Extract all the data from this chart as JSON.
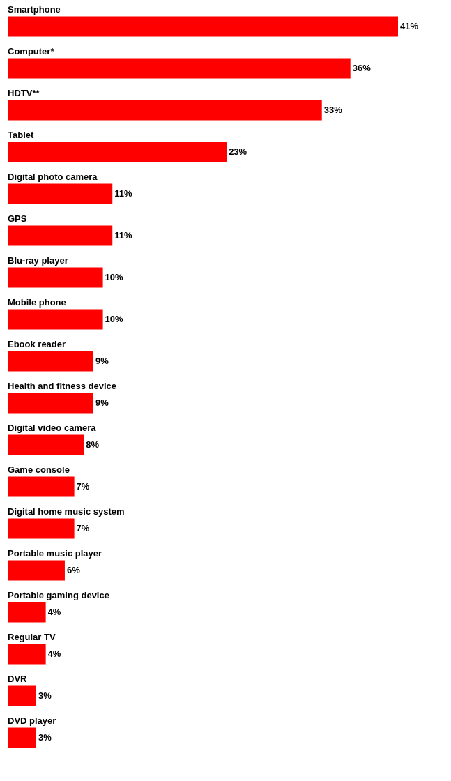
{
  "chart_data": {
    "type": "bar",
    "orientation": "horizontal",
    "color": "#ff0000",
    "categories": [
      "Smartphone",
      "Computer*",
      "HDTV**",
      "Tablet",
      "Digital photo camera",
      "GPS",
      "Blu-ray player",
      "Mobile phone",
      "Ebook reader",
      "Health and fitness device",
      "Digital video camera",
      "Game console",
      "Digital home music system",
      "Portable music player",
      "Portable gaming device",
      "Regular TV",
      "DVR",
      "DVD player"
    ],
    "values": [
      41,
      36,
      33,
      23,
      11,
      11,
      10,
      10,
      9,
      9,
      8,
      7,
      7,
      6,
      4,
      4,
      3,
      3
    ],
    "value_labels": [
      "41%",
      "36%",
      "33%",
      "23%",
      "11%",
      "11%",
      "10%",
      "10%",
      "9%",
      "9%",
      "8%",
      "7%",
      "7%",
      "6%",
      "4%",
      "4%",
      "3%",
      "3%"
    ]
  }
}
